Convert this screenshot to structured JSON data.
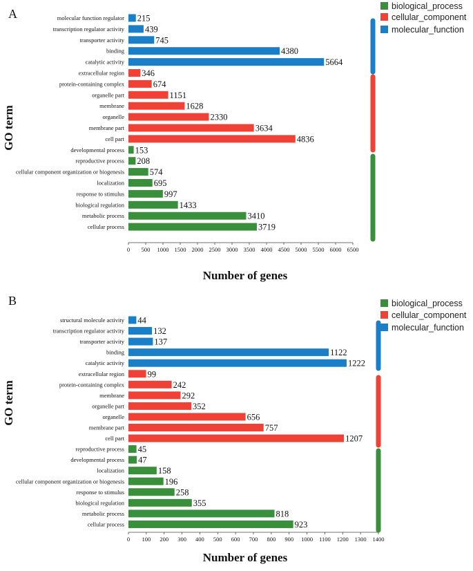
{
  "colors": {
    "biological_process": "#3a8f3c",
    "cellular_component": "#ef4136",
    "molecular_function": "#1b7fc8"
  },
  "chart_data": [
    {
      "type": "bar",
      "orientation": "horizontal",
      "panel_label": "A",
      "xlabel": "Number of genes",
      "ylabel": "GO term",
      "xlim": [
        0,
        6500
      ],
      "xticks": [
        "0",
        "500",
        "1000",
        "1500",
        "2000",
        "2500",
        "3000",
        "3500",
        "4000",
        "4500",
        "5000",
        "5500",
        "6000",
        "6500"
      ],
      "legend": [
        "biological_process",
        "cellular_component",
        "molecular_function"
      ],
      "categories": [
        {
          "label": "molecular function regulator",
          "value": 215,
          "group": "molecular_function"
        },
        {
          "label": "transcription regulator activity",
          "value": 439,
          "group": "molecular_function"
        },
        {
          "label": "transporter activity",
          "value": 745,
          "group": "molecular_function"
        },
        {
          "label": "binding",
          "value": 4380,
          "group": "molecular_function"
        },
        {
          "label": "catalytic activity",
          "value": 5664,
          "group": "molecular_function"
        },
        {
          "label": "extracellular region",
          "value": 346,
          "group": "cellular_component"
        },
        {
          "label": "protein-containing complex",
          "value": 674,
          "group": "cellular_component"
        },
        {
          "label": "organelle part",
          "value": 1151,
          "group": "cellular_component"
        },
        {
          "label": "membrane",
          "value": 1628,
          "group": "cellular_component"
        },
        {
          "label": "organelle",
          "value": 2330,
          "group": "cellular_component"
        },
        {
          "label": "membrane part",
          "value": 3634,
          "group": "cellular_component"
        },
        {
          "label": "cell part",
          "value": 4836,
          "group": "cellular_component"
        },
        {
          "label": "developmental process",
          "value": 153,
          "group": "biological_process"
        },
        {
          "label": "reproductive process",
          "value": 208,
          "group": "biological_process"
        },
        {
          "label": "cellular component organization or biogenesis",
          "value": 574,
          "group": "biological_process"
        },
        {
          "label": "localization",
          "value": 695,
          "group": "biological_process"
        },
        {
          "label": "response to stimulus",
          "value": 997,
          "group": "biological_process"
        },
        {
          "label": "biological regulation",
          "value": 1433,
          "group": "biological_process"
        },
        {
          "label": "metabolic process",
          "value": 3410,
          "group": "biological_process"
        },
        {
          "label": "cellular process",
          "value": 3719,
          "group": "biological_process"
        }
      ]
    },
    {
      "type": "bar",
      "orientation": "horizontal",
      "panel_label": "B",
      "xlabel": "Number of genes",
      "ylabel": "GO term",
      "xlim": [
        0,
        1400
      ],
      "xticks": [
        "0",
        "100",
        "200",
        "300",
        "400",
        "500",
        "600",
        "700",
        "800",
        "900",
        "1000",
        "1100",
        "1200",
        "1300",
        "1400"
      ],
      "legend": [
        "biological_process",
        "cellular_component",
        "molecular_function"
      ],
      "categories": [
        {
          "label": "structural molecule activity",
          "value": 44,
          "group": "molecular_function"
        },
        {
          "label": "transcription regulator activity",
          "value": 132,
          "group": "molecular_function"
        },
        {
          "label": "transporter activity",
          "value": 137,
          "group": "molecular_function"
        },
        {
          "label": "binding",
          "value": 1122,
          "group": "molecular_function"
        },
        {
          "label": "catalytic activity",
          "value": 1222,
          "group": "molecular_function"
        },
        {
          "label": "extracellular region",
          "value": 99,
          "group": "cellular_component"
        },
        {
          "label": "protein-containing complex",
          "value": 242,
          "group": "cellular_component"
        },
        {
          "label": "membrane",
          "value": 292,
          "group": "cellular_component"
        },
        {
          "label": "organelle part",
          "value": 352,
          "group": "cellular_component"
        },
        {
          "label": "organelle",
          "value": 656,
          "group": "cellular_component"
        },
        {
          "label": "membrane part",
          "value": 757,
          "group": "cellular_component"
        },
        {
          "label": "cell part",
          "value": 1207,
          "group": "cellular_component"
        },
        {
          "label": "reproductive process",
          "value": 45,
          "group": "biological_process"
        },
        {
          "label": "developmental process",
          "value": 47,
          "group": "biological_process"
        },
        {
          "label": "localization",
          "value": 158,
          "group": "biological_process"
        },
        {
          "label": "cellular component organization or biogenesis",
          "value": 196,
          "group": "biological_process"
        },
        {
          "label": "response to stimulus",
          "value": 258,
          "group": "biological_process"
        },
        {
          "label": "biological regulation",
          "value": 355,
          "group": "biological_process"
        },
        {
          "label": "metabolic process",
          "value": 818,
          "group": "biological_process"
        },
        {
          "label": "cellular process",
          "value": 923,
          "group": "biological_process"
        }
      ]
    }
  ]
}
